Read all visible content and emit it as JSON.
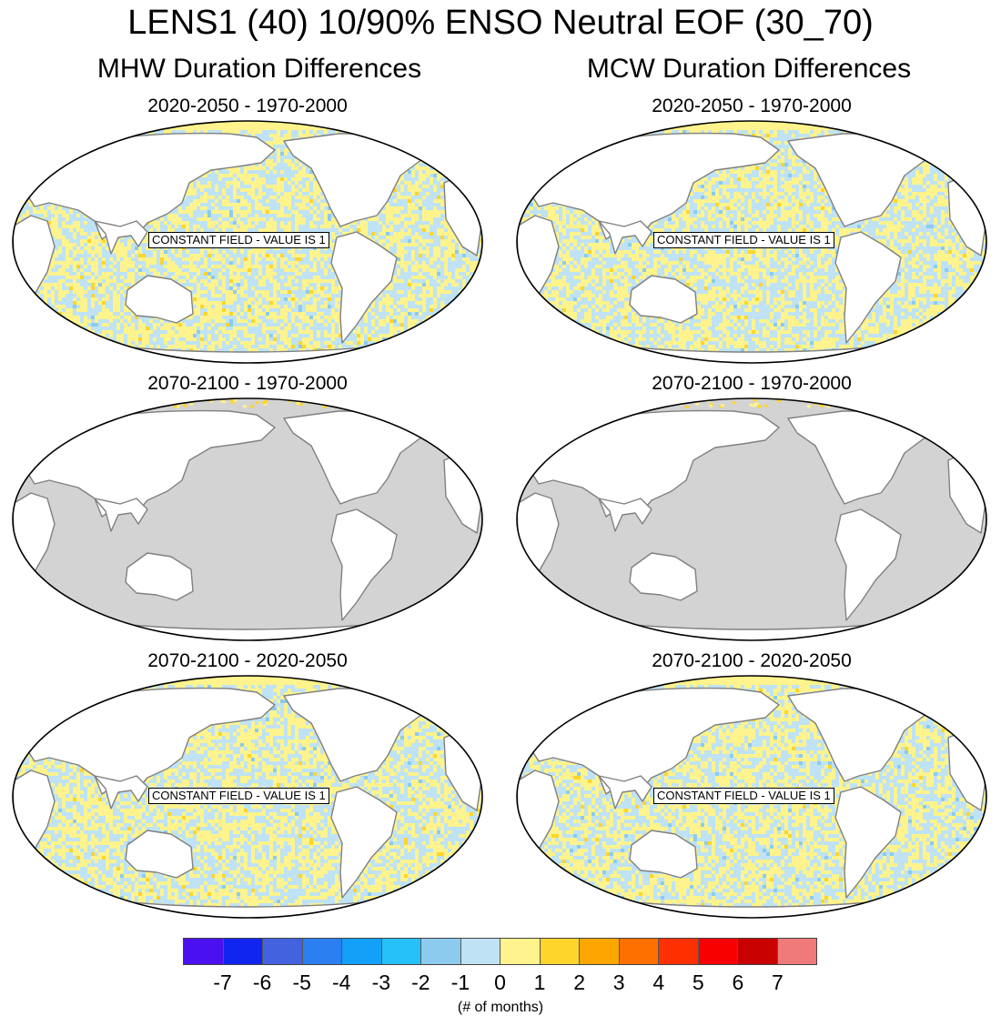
{
  "title": "LENS1 (40) 10/90% ENSO Neutral EOF (30_70)",
  "columns": [
    {
      "title": "MHW Duration Differences"
    },
    {
      "title": "MCW Duration Differences"
    }
  ],
  "panels": [
    {
      "id": "mhw-1",
      "title": "2020-2050 - 1970-2000",
      "label": "CONSTANT FIELD - VALUE IS 1",
      "fill": "noisy"
    },
    {
      "id": "mhw-2",
      "title": "2070-2100 - 1970-2000",
      "label": "",
      "fill": "missing"
    },
    {
      "id": "mhw-3",
      "title": "2070-2100 - 2020-2050",
      "label": "CONSTANT FIELD - VALUE IS 1",
      "fill": "noisy"
    },
    {
      "id": "mcw-1",
      "title": "2020-2050 - 1970-2000",
      "label": "CONSTANT FIELD - VALUE IS 1",
      "fill": "noisy"
    },
    {
      "id": "mcw-2",
      "title": "2070-2100 - 1970-2000",
      "label": "",
      "fill": "missing"
    },
    {
      "id": "mcw-3",
      "title": "2070-2100 - 2020-2050",
      "label": "CONSTANT FIELD - VALUE IS 1",
      "fill": "noisy"
    }
  ],
  "colorbar": {
    "colors": [
      "#4b10f0",
      "#1026f0",
      "#4262e0",
      "#2c7ff0",
      "#12a0f8",
      "#25c1f8",
      "#8ccbee",
      "#bfe3f5",
      "#fef38c",
      "#fed52a",
      "#fea600",
      "#fe7000",
      "#fe3000",
      "#f90000",
      "#c80000",
      "#f07a7a"
    ],
    "labels": [
      "-7",
      "-6",
      "-5",
      "-4",
      "-3",
      "-2",
      "-1",
      "0",
      "1",
      "2",
      "3",
      "4",
      "5",
      "6",
      "7"
    ],
    "units": "(# of months)"
  },
  "map_colors": {
    "land": "#ffffff",
    "missing": "#d3d3d3",
    "coast": "#808080",
    "positive_small": "#fef38c",
    "negative_small": "#bfe3f5",
    "positive_medium": "#fed52a",
    "negative_medium": "#8ccbee"
  }
}
